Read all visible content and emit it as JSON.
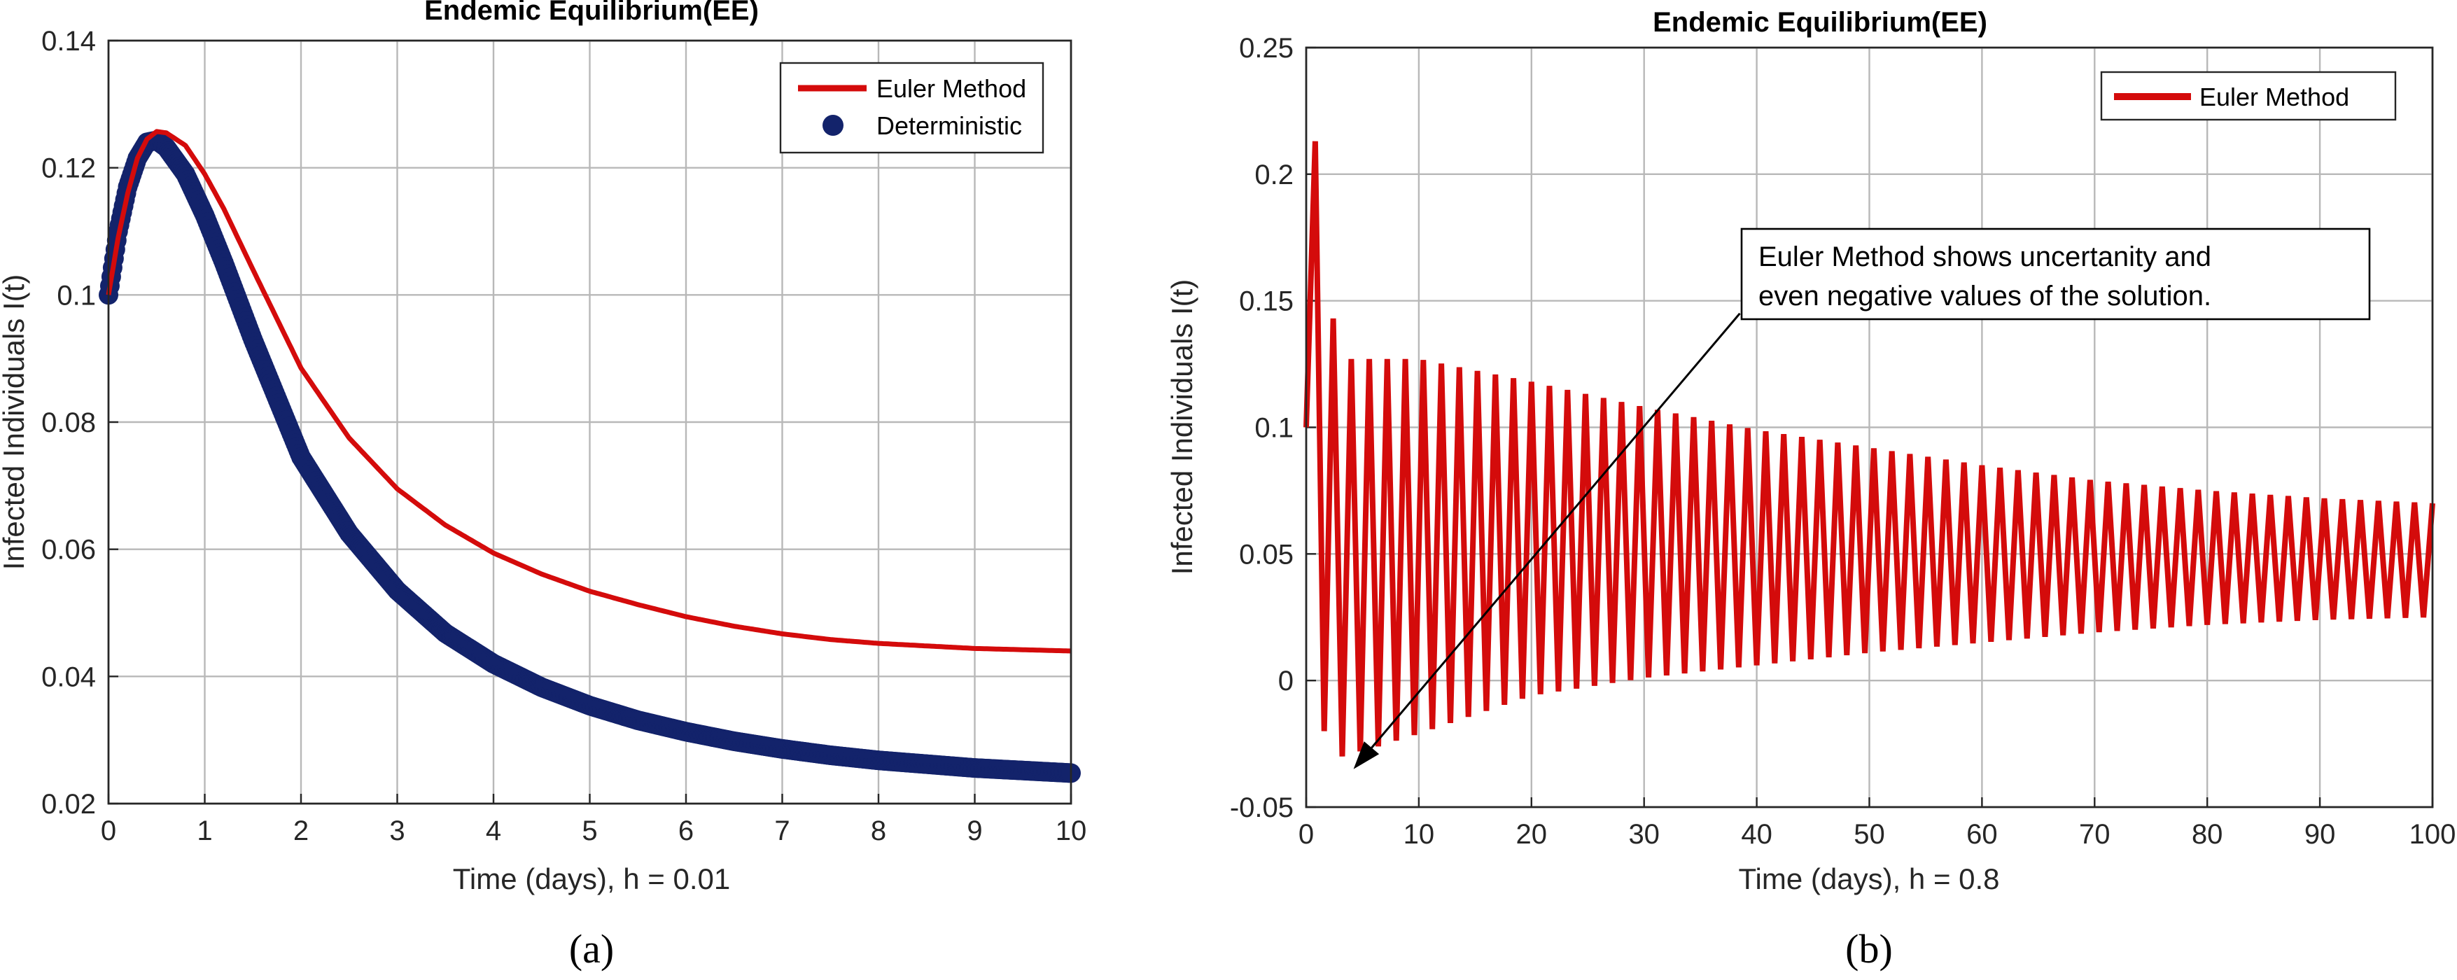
{
  "colors": {
    "euler": "#d40b0b",
    "deterministic": "#13236b",
    "grid": "#b8b8b8",
    "axis": "#262626"
  },
  "chart_data": [
    {
      "type": "line",
      "title": "Endemic Equilibrium(EE)",
      "xlabel": "Time (days), h = 0.01",
      "ylabel": "Infected Individuals I(t)",
      "caption": "(a)",
      "xlim": [
        0,
        10
      ],
      "ylim": [
        0.02,
        0.14
      ],
      "xticks": [
        0,
        1,
        2,
        3,
        4,
        5,
        6,
        7,
        8,
        9,
        10
      ],
      "yticks": [
        0.02,
        0.04,
        0.06,
        0.08,
        0.1,
        0.12,
        0.14
      ],
      "xtick_labels": [
        "0",
        "1",
        "2",
        "3",
        "4",
        "5",
        "6",
        "7",
        "8",
        "9",
        "10"
      ],
      "ytick_labels": [
        "0.02",
        "0.04",
        "0.06",
        "0.08",
        "0.1",
        "0.12",
        "0.14"
      ],
      "grid": true,
      "legend_position": "top-right",
      "series": [
        {
          "name": "Euler Method",
          "style": "line",
          "x": [
            0,
            0.1,
            0.2,
            0.3,
            0.4,
            0.5,
            0.6,
            0.8,
            1.0,
            1.2,
            1.5,
            2.0,
            2.5,
            3.0,
            3.5,
            4.0,
            4.5,
            5.0,
            5.5,
            6.0,
            6.5,
            7.0,
            7.5,
            8.0,
            8.5,
            9.0,
            9.5,
            10.0
          ],
          "values": [
            0.1,
            0.109,
            0.116,
            0.1215,
            0.1245,
            0.1257,
            0.1255,
            0.1235,
            0.119,
            0.1135,
            0.104,
            0.0885,
            0.0775,
            0.0695,
            0.0638,
            0.0594,
            0.0561,
            0.0534,
            0.0513,
            0.0494,
            0.0479,
            0.0467,
            0.0458,
            0.0452,
            0.0448,
            0.0444,
            0.0442,
            0.044
          ]
        },
        {
          "name": "Deterministic",
          "style": "markers",
          "x": [
            0,
            0.1,
            0.2,
            0.3,
            0.4,
            0.5,
            0.6,
            0.8,
            1.0,
            1.2,
            1.5,
            2.0,
            2.5,
            3.0,
            3.5,
            4.0,
            4.5,
            5.0,
            5.5,
            6.0,
            6.5,
            7.0,
            7.5,
            8.0,
            8.5,
            9.0,
            9.5,
            10.0
          ],
          "values": [
            0.1,
            0.11,
            0.117,
            0.1215,
            0.124,
            0.1243,
            0.1232,
            0.119,
            0.1125,
            0.105,
            0.093,
            0.0745,
            0.0625,
            0.0535,
            0.0468,
            0.042,
            0.0383,
            0.0354,
            0.0331,
            0.0313,
            0.0298,
            0.0286,
            0.0276,
            0.0268,
            0.0262,
            0.0256,
            0.0252,
            0.0248
          ]
        }
      ]
    },
    {
      "type": "line",
      "title": "Endemic Equilibrium(EE)",
      "xlabel": "Time (days), h = 0.8",
      "ylabel": "Infected Individuals I(t)",
      "caption": "(b)",
      "xlim": [
        0,
        100
      ],
      "ylim": [
        -0.05,
        0.25
      ],
      "xticks": [
        0,
        10,
        20,
        30,
        40,
        50,
        60,
        70,
        80,
        90,
        100
      ],
      "yticks": [
        -0.05,
        0,
        0.05,
        0.1,
        0.15,
        0.2,
        0.25
      ],
      "xtick_labels": [
        "0",
        "10",
        "20",
        "30",
        "40",
        "50",
        "60",
        "70",
        "80",
        "90",
        "100"
      ],
      "ytick_labels": [
        "-0.05",
        "0",
        "0.05",
        "0.1",
        "0.15",
        "0.2",
        "0.25"
      ],
      "grid": true,
      "legend_position": "top-right",
      "annotation": {
        "lines": [
          "Euler Method shows uncertanity and",
          "even negative values of the solution."
        ],
        "arrow_from": [
          38.5,
          0.145
        ],
        "arrow_to": [
          4.2,
          -0.035
        ]
      },
      "series": [
        {
          "name": "Euler Method",
          "style": "line",
          "step": 0.8,
          "start_value": 0.1,
          "early_values": [
            0.1,
            0.213,
            -0.02,
            0.143,
            -0.03,
            0.127
          ],
          "envelope": {
            "t": [
              5,
              10,
              20,
              30,
              40,
              50,
              60,
              70,
              80,
              90,
              100
            ],
            "upper": [
              0.127,
              0.127,
              0.118,
              0.108,
              0.099,
              0.092,
              0.085,
              0.079,
              0.075,
              0.072,
              0.07
            ],
            "lower": [
              -0.028,
              -0.021,
              -0.006,
              0.001,
              0.006,
              0.011,
              0.015,
              0.019,
              0.022,
              0.024,
              0.025
            ]
          }
        }
      ]
    }
  ]
}
